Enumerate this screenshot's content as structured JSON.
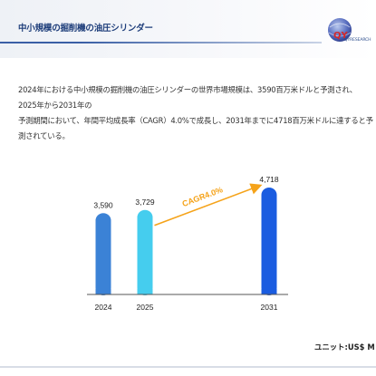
{
  "header": {
    "title": "中小規模の掘削機の油圧シリンダー",
    "logo_text": "QYRESEARCH",
    "logo_letters": "QY"
  },
  "description": "2024年における中小規模の掘削機の油圧シリンダーの世界市場規模は、3590百万米ドルと予測され、2025年から2031年の\n予測期間において、年間平均成長率（CAGR）4.0%で成長し、2031年までに4718百万米ドルに達すると予測されている。",
  "chart_data": {
    "type": "bar",
    "categories": [
      "2024",
      "2025",
      "2031"
    ],
    "values": [
      3590,
      3729,
      4718
    ],
    "value_labels": [
      "3,590",
      "3,729",
      "4,718"
    ],
    "bar_colors": [
      "#3b82d6",
      "#45cdee",
      "#1a5ce0"
    ],
    "annotation": "CAGR4.0%",
    "annotation_color": "#f5a31a",
    "ylim": [
      0,
      5000
    ],
    "grid": false,
    "legend": "none"
  },
  "unit_label": "ユニット:US$ M"
}
